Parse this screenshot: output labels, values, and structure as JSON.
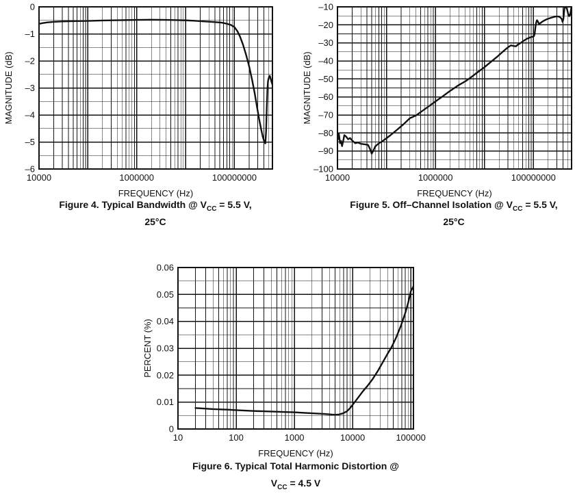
{
  "page": {
    "background": "#ffffff",
    "ink_color": "#111111"
  },
  "chart_data": [
    {
      "id": "figure4",
      "type": "line",
      "title": "Figure 4. Typical Bandwidth @ VCC = 5.5 V, 25°C",
      "caption": {
        "l1_pre": "Figure 4. Typical Bandwidth @ V",
        "l1_sub": "CC",
        "l1_post": " = 5.5 V,",
        "l2_pre": "25°C",
        "l2_sub": "",
        "l2_post": ""
      },
      "x_axis": {
        "scale": "log",
        "min": 10000,
        "max": 600000000,
        "label": "FREQUENCY (Hz)",
        "ticks": [
          {
            "v": 10000,
            "label": "10000"
          },
          {
            "v": 1000000,
            "label": "1000000"
          },
          {
            "v": 100000000,
            "label": "100000000"
          }
        ]
      },
      "y_axis": {
        "scale": "linear",
        "min": -6,
        "max": 0,
        "major": 1,
        "minor": 0.5,
        "label": "MAGNITUDE (dB)",
        "ticks": [
          {
            "v": 0,
            "label": "0"
          },
          {
            "v": -1,
            "label": "–1"
          },
          {
            "v": -2,
            "label": "–2"
          },
          {
            "v": -3,
            "label": "–3"
          },
          {
            "v": -4,
            "label": "–4"
          },
          {
            "v": -5,
            "label": "–5"
          },
          {
            "v": -6,
            "label": "–6"
          }
        ]
      },
      "series": [
        {
          "name": "magnitude",
          "color": "#111111",
          "points": [
            [
              10000,
              -0.63
            ],
            [
              12000,
              -0.6
            ],
            [
              15000,
              -0.575
            ],
            [
              20000,
              -0.555
            ],
            [
              30000,
              -0.54
            ],
            [
              50000,
              -0.53
            ],
            [
              100000,
              -0.52
            ],
            [
              200000,
              -0.505
            ],
            [
              400000,
              -0.495
            ],
            [
              700000,
              -0.487
            ],
            [
              1000000,
              -0.483
            ],
            [
              2000000,
              -0.478
            ],
            [
              4000000,
              -0.482
            ],
            [
              7000000,
              -0.492
            ],
            [
              10000000,
              -0.5
            ],
            [
              15000000,
              -0.515
            ],
            [
              20000000,
              -0.53
            ],
            [
              30000000,
              -0.55
            ],
            [
              40000000,
              -0.565
            ],
            [
              55000000,
              -0.585
            ],
            [
              70000000,
              -0.625
            ],
            [
              85000000,
              -0.67
            ],
            [
              100000000,
              -0.75
            ],
            [
              115000000,
              -0.9
            ],
            [
              130000000,
              -1.1
            ],
            [
              150000000,
              -1.4
            ],
            [
              175000000,
              -1.8
            ],
            [
              200000000,
              -2.2
            ],
            [
              230000000,
              -2.7
            ],
            [
              260000000,
              -3.2
            ],
            [
              290000000,
              -3.7
            ],
            [
              320000000,
              -4.15
            ],
            [
              350000000,
              -4.5
            ],
            [
              380000000,
              -4.8
            ],
            [
              410000000,
              -5.0
            ],
            [
              430000000,
              -5.05
            ],
            [
              445000000,
              -4.6
            ],
            [
              460000000,
              -3.7
            ],
            [
              475000000,
              -3.0
            ],
            [
              490000000,
              -2.72
            ],
            [
              510000000,
              -2.6
            ],
            [
              530000000,
              -2.55
            ],
            [
              550000000,
              -2.65
            ],
            [
              575000000,
              -2.78
            ],
            [
              600000000,
              -2.88
            ]
          ]
        }
      ]
    },
    {
      "id": "figure5",
      "type": "line",
      "title": "Figure 5. Off–Channel Isolation @ VCC = 5.5 V, 25°C",
      "caption": {
        "l1_pre": "Figure 5. Off–Channel Isolation @ V",
        "l1_sub": "CC",
        "l1_post": " = 5.5 V,",
        "l2_pre": "25°C",
        "l2_sub": "",
        "l2_post": ""
      },
      "x_axis": {
        "scale": "log",
        "min": 10000,
        "max": 600000000,
        "label": "FREQUENCY (Hz)",
        "ticks": [
          {
            "v": 10000,
            "label": "10000"
          },
          {
            "v": 1000000,
            "label": "1000000"
          },
          {
            "v": 100000000,
            "label": "100000000"
          }
        ]
      },
      "y_axis": {
        "scale": "linear",
        "min": -100,
        "max": -10,
        "major": 10,
        "minor": 5,
        "label": "MAGNITUDE (dB)",
        "ticks": [
          {
            "v": -10,
            "label": "–10"
          },
          {
            "v": -20,
            "label": "–20"
          },
          {
            "v": -30,
            "label": "–30"
          },
          {
            "v": -40,
            "label": "–40"
          },
          {
            "v": -50,
            "label": "–50"
          },
          {
            "v": -60,
            "label": "–60"
          },
          {
            "v": -70,
            "label": "–70"
          },
          {
            "v": -80,
            "label": "–80"
          },
          {
            "v": -90,
            "label": "–90"
          },
          {
            "v": -100,
            "label": "–100"
          }
        ]
      },
      "series": [
        {
          "name": "isolation",
          "color": "#111111",
          "points": [
            [
              10000,
              -80.2
            ],
            [
              10300,
              -83.4
            ],
            [
              10700,
              -80.5
            ],
            [
              11300,
              -85.7
            ],
            [
              11900,
              -84.5
            ],
            [
              12400,
              -87.3
            ],
            [
              13200,
              -84.0
            ],
            [
              13800,
              -81.2
            ],
            [
              15000,
              -82.0
            ],
            [
              16500,
              -83.5
            ],
            [
              18000,
              -82.8
            ],
            [
              20000,
              -84.2
            ],
            [
              23000,
              -85.7
            ],
            [
              26000,
              -85.3
            ],
            [
              30000,
              -86.0
            ],
            [
              36000,
              -86.3
            ],
            [
              42000,
              -86.6
            ],
            [
              46000,
              -88.8
            ],
            [
              50000,
              -91.5
            ],
            [
              54000,
              -89.8
            ],
            [
              59000,
              -87.5
            ],
            [
              68000,
              -86.0
            ],
            [
              80000,
              -84.8
            ],
            [
              95000,
              -83.4
            ],
            [
              120000,
              -81.3
            ],
            [
              160000,
              -78.5
            ],
            [
              220000,
              -75.3
            ],
            [
              300000,
              -71.8
            ],
            [
              400000,
              -70.3
            ],
            [
              550000,
              -67.6
            ],
            [
              750000,
              -65.0
            ],
            [
              1000000,
              -62.5
            ],
            [
              1400000,
              -59.7
            ],
            [
              2000000,
              -56.6
            ],
            [
              3000000,
              -53.4
            ],
            [
              4200000,
              -51.1
            ],
            [
              5500000,
              -48.8
            ],
            [
              7000000,
              -46.6
            ],
            [
              10000000,
              -43.5
            ],
            [
              14000000,
              -40.2
            ],
            [
              18000000,
              -37.8
            ],
            [
              23000000,
              -35.2
            ],
            [
              28000000,
              -33.2
            ],
            [
              32000000,
              -32.0
            ],
            [
              35000000,
              -31.4
            ],
            [
              39000000,
              -31.7
            ],
            [
              44000000,
              -31.9
            ],
            [
              48000000,
              -31.0
            ],
            [
              55000000,
              -30.0
            ],
            [
              65000000,
              -28.6
            ],
            [
              75000000,
              -27.6
            ],
            [
              85000000,
              -27.0
            ],
            [
              95000000,
              -26.6
            ],
            [
              102000000,
              -26.3
            ],
            [
              106000000,
              -25.0
            ],
            [
              110000000,
              -21.0
            ],
            [
              114000000,
              -18.6
            ],
            [
              118000000,
              -17.4
            ],
            [
              123000000,
              -18.1
            ],
            [
              129000000,
              -19.3
            ],
            [
              138000000,
              -19.1
            ],
            [
              150000000,
              -18.3
            ],
            [
              168000000,
              -17.5
            ],
            [
              190000000,
              -16.8
            ],
            [
              220000000,
              -16.2
            ],
            [
              255000000,
              -15.7
            ],
            [
              295000000,
              -15.3
            ],
            [
              325000000,
              -15.4
            ],
            [
              355000000,
              -15.9
            ],
            [
              378000000,
              -16.7
            ],
            [
              393000000,
              -18.4
            ],
            [
              408000000,
              -16.8
            ],
            [
              420000000,
              -13.5
            ],
            [
              431000000,
              -10.4
            ],
            [
              448000000,
              -10.1
            ],
            [
              468000000,
              -10.5
            ],
            [
              488000000,
              -11.6
            ],
            [
              510000000,
              -13.8
            ],
            [
              535000000,
              -15.2
            ],
            [
              558000000,
              -14.6
            ],
            [
              578000000,
              -12.3
            ],
            [
              592000000,
              -10.6
            ],
            [
              600000000,
              -10.2
            ]
          ]
        }
      ]
    },
    {
      "id": "figure6",
      "type": "line",
      "title": "Figure 6. Typical Total Harmonic Distortion @ VCC = 4.5 V",
      "caption": {
        "l1_pre": "Figure 6. Typical Total Harmonic Distortion @",
        "l1_sub": "",
        "l1_post": "",
        "l2_pre": "V",
        "l2_sub": "CC",
        "l2_post": " = 4.5 V"
      },
      "x_axis": {
        "scale": "log",
        "min": 10,
        "max": 111000,
        "label": "FREQUENCY (Hz)",
        "ticks": [
          {
            "v": 10,
            "label": "10"
          },
          {
            "v": 100,
            "label": "100"
          },
          {
            "v": 1000,
            "label": "1000"
          },
          {
            "v": 10000,
            "label": "10000"
          },
          {
            "v": 100000,
            "label": "100000"
          }
        ]
      },
      "y_axis": {
        "scale": "linear",
        "min": 0,
        "max": 0.06,
        "major": 0.01,
        "minor": 0.005,
        "label": "PERCENT (%)",
        "ticks": [
          {
            "v": 0.06,
            "label": "0.06"
          },
          {
            "v": 0.05,
            "label": "0.05"
          },
          {
            "v": 0.04,
            "label": "0.04"
          },
          {
            "v": 0.03,
            "label": "0.03"
          },
          {
            "v": 0.02,
            "label": "0.02"
          },
          {
            "v": 0.01,
            "label": "0.01"
          },
          {
            "v": 0,
            "label": "0"
          }
        ]
      },
      "series": [
        {
          "name": "thd",
          "color": "#111111",
          "points": [
            [
              20,
              0.0078
            ],
            [
              40,
              0.0074
            ],
            [
              70,
              0.0072
            ],
            [
              100,
              0.007
            ],
            [
              200,
              0.0067
            ],
            [
              400,
              0.0065
            ],
            [
              700,
              0.0063
            ],
            [
              1000,
              0.0062
            ],
            [
              1500,
              0.006
            ],
            [
              2200,
              0.0058
            ],
            [
              3200,
              0.0056
            ],
            [
              4300,
              0.0054
            ],
            [
              5000,
              0.0053
            ],
            [
              5800,
              0.0054
            ],
            [
              6800,
              0.0058
            ],
            [
              8000,
              0.0066
            ],
            [
              9000,
              0.0077
            ],
            [
              10000,
              0.009
            ],
            [
              12000,
              0.0112
            ],
            [
              15000,
              0.014
            ],
            [
              18000,
              0.016
            ],
            [
              22000,
              0.0185
            ],
            [
              27000,
              0.0215
            ],
            [
              33000,
              0.0248
            ],
            [
              40000,
              0.028
            ],
            [
              47000,
              0.0305
            ],
            [
              56000,
              0.034
            ],
            [
              68000,
              0.0385
            ],
            [
              80000,
              0.043
            ],
            [
              90000,
              0.0468
            ],
            [
              100000,
              0.0512
            ],
            [
              111000,
              0.053
            ]
          ]
        }
      ]
    }
  ]
}
